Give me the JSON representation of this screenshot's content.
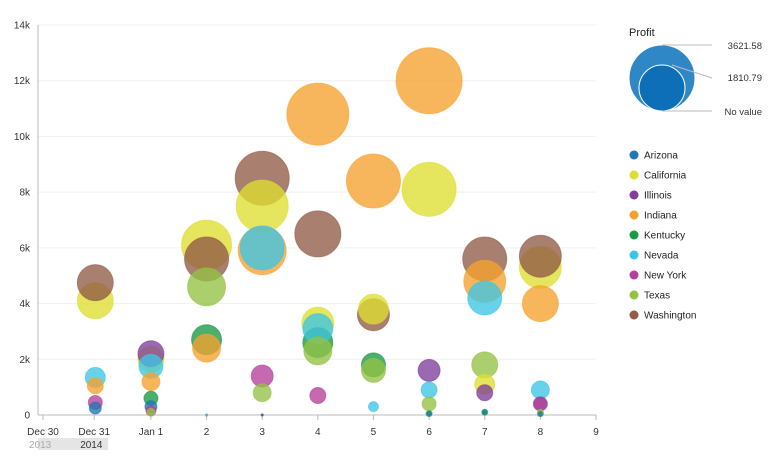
{
  "chart_data": {
    "type": "bubble",
    "title": "",
    "xlabel": "",
    "ylabel": "",
    "x_tick_labels": [
      {
        "x": -0.94,
        "label": "Dec 30",
        "sub": "2013"
      },
      {
        "x": -0.02,
        "label": "Dec 31",
        "sub": "2014"
      },
      {
        "x": 1,
        "label": "Jan 1"
      },
      {
        "x": 2,
        "label": "2"
      },
      {
        "x": 3,
        "label": "3"
      },
      {
        "x": 4,
        "label": "4"
      },
      {
        "x": 5,
        "label": "5"
      },
      {
        "x": 6,
        "label": "6"
      },
      {
        "x": 7,
        "label": "7"
      },
      {
        "x": 8,
        "label": "8"
      },
      {
        "x": 9,
        "label": "9"
      }
    ],
    "y_tick_labels": [
      "0",
      "2k",
      "4k",
      "6k",
      "8k",
      "10k",
      "12k",
      "14k"
    ],
    "xlim": [
      -1.03,
      9
    ],
    "ylim": [
      0,
      14000
    ],
    "grid": true,
    "size_legend": {
      "title": "Profit",
      "values": [
        "3621.58",
        "1810.79"
      ],
      "no_value_label": "No value"
    },
    "legend_position": "right",
    "series": [
      {
        "name": "Arizona",
        "color": "#1f77b4",
        "points": [
          [
            0,
            250,
            6
          ],
          [
            1,
            300,
            6
          ],
          [
            2,
            0,
            1
          ],
          [
            3,
            0,
            1
          ],
          [
            6,
            50,
            2
          ],
          [
            7,
            100,
            2
          ],
          [
            8,
            50,
            2
          ]
        ]
      },
      {
        "name": "California",
        "color": "#dede31",
        "points": [
          [
            0,
            4100,
            18
          ],
          [
            1,
            2000,
            13
          ],
          [
            2,
            6100,
            25
          ],
          [
            3,
            7500,
            26
          ],
          [
            4,
            3300,
            16
          ],
          [
            5,
            3800,
            15
          ],
          [
            6,
            8100,
            27
          ],
          [
            7,
            1100,
            10
          ],
          [
            8,
            5300,
            21
          ]
        ]
      },
      {
        "name": "Illinois",
        "color": "#7f3f9a",
        "points": [
          [
            1,
            2200,
            13
          ],
          [
            3,
            0,
            1
          ],
          [
            6,
            1600,
            11
          ],
          [
            7,
            800,
            8
          ],
          [
            8,
            400,
            7
          ]
        ]
      },
      {
        "name": "Indiana",
        "color": "#f6a12e",
        "points": [
          [
            0,
            1050,
            8
          ],
          [
            1,
            1200,
            9
          ],
          [
            2,
            2400,
            14
          ],
          [
            3,
            5900,
            24
          ],
          [
            4,
            10800,
            31
          ],
          [
            5,
            8400,
            27
          ],
          [
            6,
            12000,
            33
          ],
          [
            7,
            4800,
            21
          ],
          [
            8,
            4000,
            18
          ]
        ]
      },
      {
        "name": "Kentucky",
        "color": "#199945",
        "points": [
          [
            1,
            600,
            7
          ],
          [
            2,
            2700,
            15
          ],
          [
            4,
            2600,
            15
          ],
          [
            5,
            1800,
            12
          ],
          [
            6,
            50,
            3
          ],
          [
            7,
            100,
            3
          ],
          [
            8,
            50,
            3
          ]
        ]
      },
      {
        "name": "Nevada",
        "color": "#3dc5e6",
        "points": [
          [
            0,
            1350,
            10
          ],
          [
            1,
            1750,
            12
          ],
          [
            2,
            0,
            1
          ],
          [
            3,
            6000,
            22
          ],
          [
            4,
            3100,
            15
          ],
          [
            5,
            300,
            5
          ],
          [
            6,
            900,
            8
          ],
          [
            7,
            4200,
            17
          ],
          [
            8,
            900,
            9
          ]
        ]
      },
      {
        "name": "New York",
        "color": "#b5409a",
        "points": [
          [
            0,
            450,
            7
          ],
          [
            1,
            150,
            5
          ],
          [
            3,
            1400,
            11
          ],
          [
            4,
            700,
            8
          ],
          [
            8,
            400,
            6
          ]
        ]
      },
      {
        "name": "Texas",
        "color": "#94c244",
        "points": [
          [
            1,
            100,
            4
          ],
          [
            2,
            4600,
            19
          ],
          [
            3,
            800,
            9
          ],
          [
            4,
            2300,
            14
          ],
          [
            5,
            1600,
            12
          ],
          [
            6,
            400,
            7
          ],
          [
            7,
            1800,
            13
          ],
          [
            8,
            100,
            3
          ]
        ]
      },
      {
        "name": "Washington",
        "color": "#915b47",
        "points": [
          [
            0,
            4750,
            18
          ],
          [
            2,
            5600,
            22
          ],
          [
            3,
            8500,
            27
          ],
          [
            4,
            6500,
            23
          ],
          [
            5,
            3600,
            16
          ],
          [
            7,
            5600,
            22
          ],
          [
            8,
            5700,
            21
          ]
        ]
      }
    ]
  }
}
